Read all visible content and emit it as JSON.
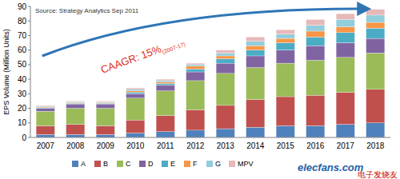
{
  "chart_data": {
    "type": "bar",
    "stacked": true,
    "source": "Source: Strategy Analytics Sep 2011",
    "y_label": "EPS Volume (Million Units)",
    "annotations": [
      "CAAGR: 15%",
      "(2007-17)",
      "elecfans.com",
      "电子发烧友"
    ],
    "categories": [
      "2007",
      "2008",
      "2009",
      "2010",
      "2011",
      "2012",
      "2013",
      "2014",
      "2015",
      "2016",
      "2017",
      "2018"
    ],
    "series": [
      {
        "name": "A",
        "color": "#4f81bd",
        "values": [
          2,
          2,
          2,
          3,
          4,
          5,
          6,
          7,
          8,
          8,
          9,
          10
        ]
      },
      {
        "name": "B",
        "color": "#c0504d",
        "values": [
          6,
          7,
          6,
          9,
          11,
          14,
          16,
          19,
          20,
          21,
          22,
          23
        ]
      },
      {
        "name": "C",
        "color": "#9bbb59",
        "values": [
          10,
          11,
          12,
          15,
          17,
          20,
          22,
          22,
          23,
          24,
          24,
          25
        ]
      },
      {
        "name": "D",
        "color": "#8064a2",
        "values": [
          2,
          3,
          3,
          3,
          4,
          6,
          7,
          8,
          9,
          10,
          10,
          10
        ]
      },
      {
        "name": "E",
        "color": "#4bacc6",
        "values": [
          0.5,
          0.5,
          0.5,
          1,
          1,
          2,
          3,
          4,
          5,
          6,
          7,
          7
        ]
      },
      {
        "name": "F",
        "color": "#f79646",
        "values": [
          0.5,
          0.5,
          0.5,
          1,
          1,
          2,
          2,
          3,
          3,
          4,
          4,
          4
        ]
      },
      {
        "name": "G",
        "color": "#92cddc",
        "values": [
          0.5,
          0.5,
          0.5,
          1,
          1,
          1,
          2,
          3,
          3,
          4,
          5,
          5
        ]
      },
      {
        "name": "MPV",
        "color": "#e6b9b8",
        "values": [
          0.5,
          0.5,
          0.5,
          1,
          1,
          1,
          2,
          3,
          3,
          4,
          4,
          4
        ]
      }
    ],
    "ylim": [
      0,
      90
    ],
    "yticks": [
      0,
      10,
      20,
      30,
      40,
      50,
      60,
      70,
      80,
      90
    ],
    "grid": false,
    "legend": "bottom"
  }
}
